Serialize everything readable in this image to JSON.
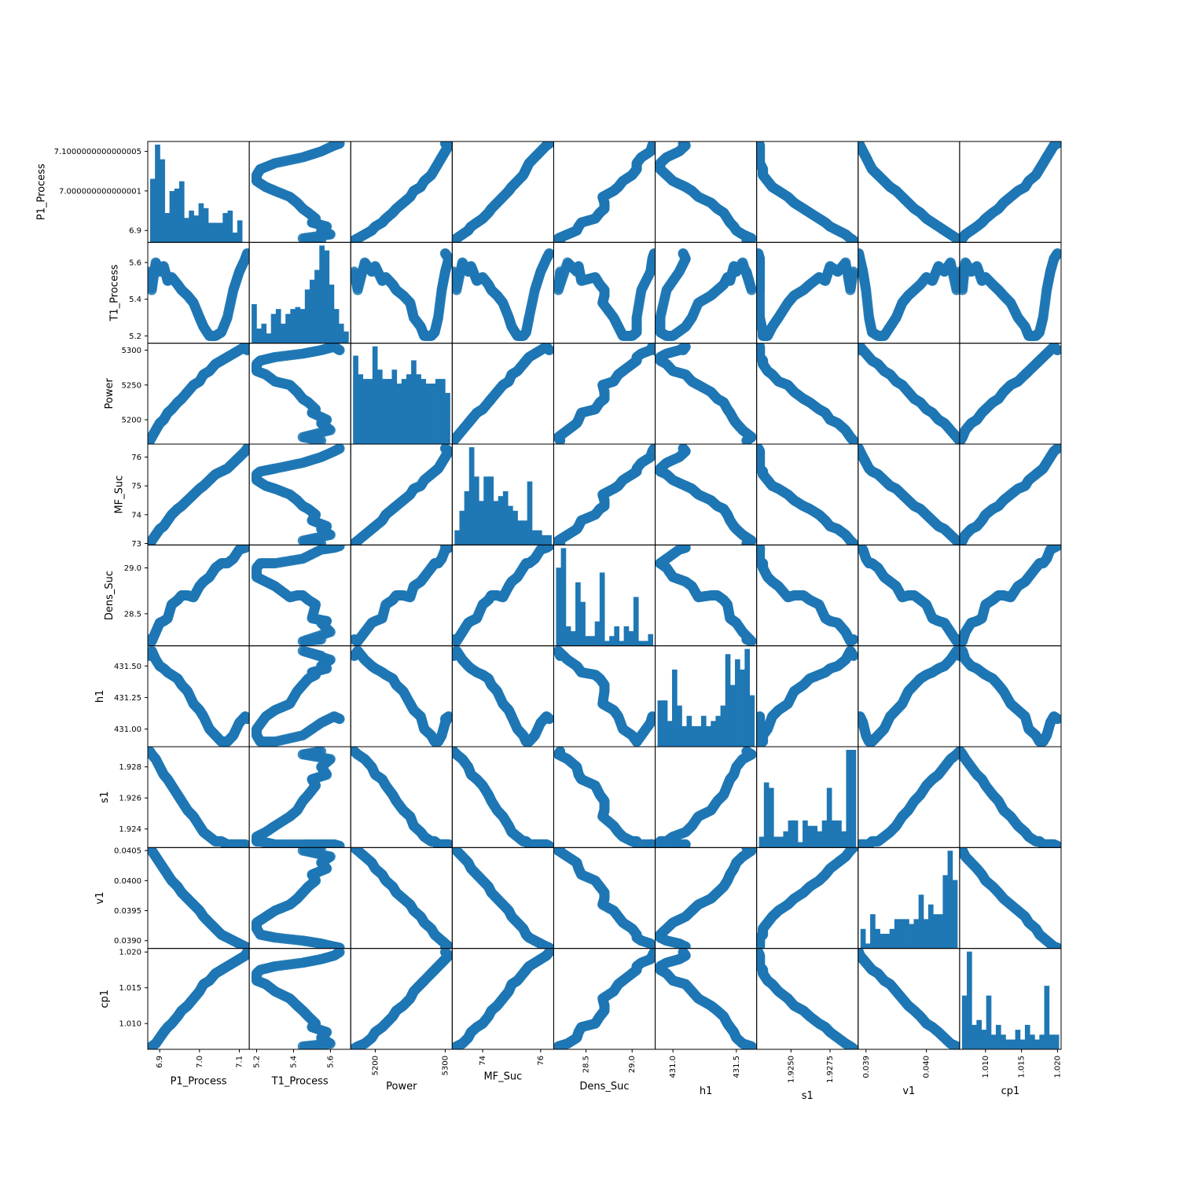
{
  "chart_data": {
    "type": "scatter",
    "subtype": "scatter-matrix",
    "diagonal": "hist",
    "marker_color": "#1f77b4",
    "variables": [
      {
        "name": "P1_Process",
        "range": [
          6.87,
          7.125
        ],
        "ticks": [
          {
            "v": 6.9,
            "label": "6.9"
          },
          {
            "v": 7.0,
            "label": "7.0"
          },
          {
            "v": 7.1,
            "label": "7.1"
          }
        ],
        "yticks": [
          {
            "v": 6.9,
            "label": "6.9"
          },
          {
            "v": 7.0,
            "label": "7.000000000000001"
          },
          {
            "v": 7.1,
            "label": "7.1000000000000005"
          }
        ],
        "hist": [
          1.3,
          2.0,
          1.7,
          0.6,
          1.05,
          1.1,
          1.25,
          0.5,
          0.65,
          0.55,
          0.8,
          0.7,
          0.4,
          0.4,
          0.4,
          0.6,
          0.65,
          0.2,
          0.45,
          0.0
        ]
      },
      {
        "name": "T1_Process",
        "range": [
          5.16,
          5.71
        ],
        "ticks": [
          {
            "v": 5.2,
            "label": "5.2"
          },
          {
            "v": 5.4,
            "label": "5.4"
          },
          {
            "v": 5.6,
            "label": "5.6"
          }
        ],
        "yticks": [
          {
            "v": 5.2,
            "label": "5.2"
          },
          {
            "v": 5.4,
            "label": "5.4"
          },
          {
            "v": 5.6,
            "label": "5.6"
          }
        ],
        "hist": [
          0.4,
          0.15,
          0.2,
          0.1,
          0.3,
          0.35,
          0.2,
          0.3,
          0.35,
          0.37,
          0.35,
          0.55,
          0.65,
          0.75,
          1.0,
          0.95,
          0.6,
          0.35,
          0.2,
          0.12
        ]
      },
      {
        "name": "Power",
        "range": [
          5165,
          5310
        ],
        "ticks": [
          {
            "v": 5200,
            "label": "5200"
          },
          {
            "v": 5300,
            "label": "5300"
          }
        ],
        "yticks": [
          {
            "v": 5200,
            "label": "5200"
          },
          {
            "v": 5250,
            "label": "5250"
          },
          {
            "v": 5300,
            "label": "5300"
          }
        ],
        "hist": [
          0.95,
          0.75,
          0.7,
          0.7,
          1.05,
          0.8,
          0.7,
          0.7,
          0.8,
          0.65,
          0.7,
          0.75,
          0.9,
          0.75,
          0.7,
          0.65,
          0.65,
          0.7,
          0.7,
          0.55
        ]
      },
      {
        "name": "MF_Suc",
        "range": [
          72.95,
          76.45
        ],
        "ticks": [
          {
            "v": 74,
            "label": "74"
          },
          {
            "v": 76,
            "label": "76"
          }
        ],
        "yticks": [
          {
            "v": 73,
            "label": "73"
          },
          {
            "v": 74,
            "label": "74"
          },
          {
            "v": 75,
            "label": "75"
          },
          {
            "v": 76,
            "label": "76"
          }
        ],
        "hist": [
          0.15,
          0.35,
          0.55,
          1.0,
          0.7,
          0.45,
          0.7,
          0.7,
          0.45,
          0.5,
          0.55,
          0.4,
          0.35,
          0.25,
          0.25,
          0.65,
          0.15,
          0.15,
          0.1,
          0.1
        ]
      },
      {
        "name": "Dens_Suc",
        "range": [
          28.15,
          29.25
        ],
        "ticks": [
          {
            "v": 28.5,
            "label": "28.5"
          },
          {
            "v": 29.0,
            "label": "29.0"
          }
        ],
        "yticks": [
          {
            "v": 28.5,
            "label": "28.5"
          },
          {
            "v": 29.0,
            "label": "29.0"
          }
        ],
        "hist": [
          0.8,
          1.0,
          0.2,
          0.15,
          0.65,
          0.45,
          0.1,
          0.1,
          0.25,
          0.75,
          0.05,
          0.1,
          0.2,
          0.05,
          0.2,
          0.15,
          0.5,
          0.05,
          0.05,
          0.12
        ]
      },
      {
        "name": "h1",
        "range": [
          430.86,
          431.66
        ],
        "ticks": [
          {
            "v": 431.0,
            "label": "431.0"
          },
          {
            "v": 431.5,
            "label": "431.5"
          }
        ],
        "yticks": [
          {
            "v": 431.0,
            "label": "431.00"
          },
          {
            "v": 431.25,
            "label": "431.25"
          },
          {
            "v": 431.5,
            "label": "431.50"
          }
        ],
        "hist": [
          0.45,
          0.45,
          0.25,
          0.75,
          0.4,
          0.2,
          0.3,
          0.2,
          0.2,
          0.3,
          0.2,
          0.25,
          0.3,
          0.4,
          0.9,
          0.6,
          0.85,
          0.75,
          0.95,
          0.5
        ]
      },
      {
        "name": "s1",
        "range": [
          1.9228,
          1.9293
        ],
        "ticks": [
          {
            "v": 1.925,
            "label": "1.9250"
          },
          {
            "v": 1.9275,
            "label": "1.9275"
          }
        ],
        "yticks": [
          {
            "v": 1.924,
            "label": "1.924"
          },
          {
            "v": 1.926,
            "label": "1.926"
          },
          {
            "v": 1.928,
            "label": "1.928"
          }
        ],
        "hist": [
          0.1,
          0.6,
          0.55,
          0.1,
          0.1,
          0.15,
          0.25,
          0.25,
          0.05,
          0.25,
          0.2,
          0.2,
          0.15,
          0.25,
          0.55,
          0.25,
          0.25,
          0.15,
          0.9,
          0.9
        ]
      },
      {
        "name": "v1",
        "range": [
          0.03887,
          0.04055
        ],
        "ticks": [
          {
            "v": 0.039,
            "label": "0.039"
          },
          {
            "v": 0.04,
            "label": "0.040"
          }
        ],
        "yticks": [
          {
            "v": 0.039,
            "label": "0.0390"
          },
          {
            "v": 0.0395,
            "label": "0.0395"
          },
          {
            "v": 0.04,
            "label": "0.0400"
          },
          {
            "v": 0.0405,
            "label": "0.0405"
          }
        ],
        "hist": [
          0.2,
          0.05,
          0.35,
          0.2,
          0.15,
          0.15,
          0.2,
          0.3,
          0.3,
          0.3,
          0.25,
          0.3,
          0.55,
          0.3,
          0.45,
          0.35,
          0.35,
          0.75,
          1.0,
          0.7
        ]
      },
      {
        "name": "cp1",
        "range": [
          1.0064,
          1.0205
        ],
        "ticks": [
          {
            "v": 1.01,
            "label": "1.010"
          },
          {
            "v": 1.015,
            "label": "1.015"
          },
          {
            "v": 1.02,
            "label": "1.020"
          }
        ],
        "yticks": [
          {
            "v": 1.01,
            "label": "1.010"
          },
          {
            "v": 1.015,
            "label": "1.015"
          },
          {
            "v": 1.02,
            "label": "1.020"
          }
        ],
        "hist": [
          0.55,
          1.0,
          0.25,
          0.3,
          0.2,
          0.55,
          0.15,
          0.25,
          0.15,
          0.1,
          0.1,
          0.2,
          0.1,
          0.25,
          0.15,
          0.1,
          0.15,
          0.65,
          0.15,
          0.15
        ]
      }
    ],
    "scatter_points": [
      [
        6.875,
        5.55,
        5170,
        73.0,
        28.22,
        431.58,
        1.929,
        0.04055,
        1.0065
      ],
      [
        6.88,
        5.45,
        5175,
        73.1,
        28.2,
        431.62,
        1.9288,
        0.0405,
        1.0068
      ],
      [
        6.89,
        5.6,
        5185,
        73.3,
        28.3,
        431.55,
        1.9285,
        0.0404,
        1.0072
      ],
      [
        6.9,
        5.55,
        5195,
        73.5,
        28.4,
        431.5,
        1.928,
        0.0403,
        1.008
      ],
      [
        6.91,
        5.58,
        5200,
        73.6,
        28.42,
        431.48,
        1.9275,
        0.0402,
        1.0088
      ],
      [
        6.92,
        5.5,
        5210,
        73.8,
        28.45,
        431.45,
        1.9272,
        0.0401,
        1.0095
      ],
      [
        6.93,
        5.52,
        5215,
        74.0,
        28.6,
        431.43,
        1.9268,
        0.04,
        1.01
      ],
      [
        6.945,
        5.48,
        5225,
        74.2,
        28.65,
        431.4,
        1.9262,
        0.0399,
        1.011
      ],
      [
        6.955,
        5.45,
        5230,
        74.3,
        28.7,
        431.35,
        1.9258,
        0.0398,
        1.0118
      ],
      [
        6.97,
        5.42,
        5240,
        74.5,
        28.7,
        431.3,
        1.9252,
        0.0397,
        1.0125
      ],
      [
        6.985,
        5.38,
        5250,
        74.7,
        28.68,
        431.2,
        1.9248,
        0.0396,
        1.0135
      ],
      [
        7.0,
        5.3,
        5255,
        74.9,
        28.8,
        431.15,
        1.9242,
        0.0395,
        1.0145
      ],
      [
        7.01,
        5.25,
        5265,
        75.0,
        28.85,
        431.1,
        1.9238,
        0.0394,
        1.0155
      ],
      [
        7.025,
        5.2,
        5270,
        75.2,
        28.9,
        431.0,
        1.9235,
        0.0393,
        1.016
      ],
      [
        7.04,
        5.2,
        5280,
        75.4,
        29.0,
        430.95,
        1.9232,
        0.0392,
        1.017
      ],
      [
        7.055,
        5.22,
        5285,
        75.5,
        29.05,
        430.9,
        1.9232,
        0.0391,
        1.0175
      ],
      [
        7.07,
        5.3,
        5290,
        75.6,
        29.05,
        430.9,
        1.923,
        0.03905,
        1.018
      ],
      [
        7.085,
        5.45,
        5295,
        75.8,
        29.1,
        430.95,
        1.923,
        0.039,
        1.0185
      ],
      [
        7.1,
        5.55,
        5300,
        76.0,
        29.2,
        431.05,
        1.923,
        0.03895,
        1.019
      ],
      [
        7.115,
        5.62,
        5305,
        76.2,
        29.22,
        431.1,
        1.923,
        0.0389,
        1.0195
      ],
      [
        7.12,
        5.65,
        5300,
        76.3,
        29.24,
        431.08,
        1.9229,
        0.03888,
        1.02
      ]
    ]
  }
}
